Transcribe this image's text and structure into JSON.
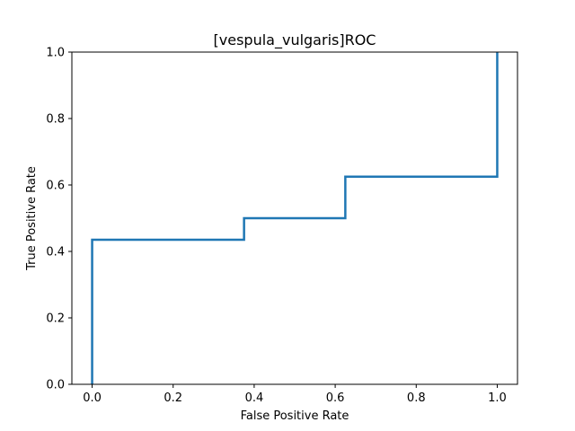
{
  "chart_data": {
    "type": "line",
    "title": "[vespula_vulgaris]ROC",
    "xlabel": "False Positive Rate",
    "ylabel": "True Positive Rate",
    "xlim": [
      -0.05,
      1.05
    ],
    "ylim": [
      0.0,
      1.0
    ],
    "xticks": [
      "0.0",
      "0.2",
      "0.4",
      "0.6",
      "0.8",
      "1.0"
    ],
    "yticks": [
      "0.0",
      "0.2",
      "0.4",
      "0.6",
      "0.8",
      "1.0"
    ],
    "grid": false,
    "legend": "none",
    "series": [
      {
        "color": "#1f77b4",
        "x": [
          0.0,
          0.0,
          0.375,
          0.375,
          0.625,
          0.625,
          1.0,
          1.0
        ],
        "y": [
          0.0,
          0.435,
          0.435,
          0.5,
          0.5,
          0.625,
          0.625,
          1.0
        ]
      }
    ]
  }
}
